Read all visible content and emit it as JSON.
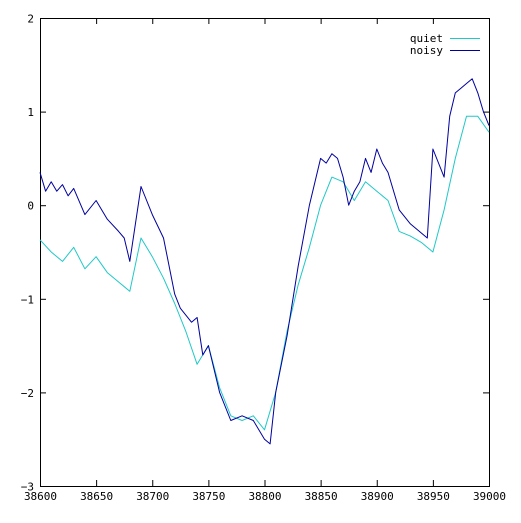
{
  "chart_data": {
    "type": "line",
    "title": "",
    "xlabel": "",
    "ylabel": "",
    "xlim": [
      38600,
      39000
    ],
    "ylim": [
      -3,
      2
    ],
    "grid": false,
    "legend_position": "top-right",
    "x_ticks": [
      38600,
      38650,
      38700,
      38750,
      38800,
      38850,
      38900,
      38950,
      39000
    ],
    "y_ticks": [
      -3,
      -2,
      -1,
      0,
      1,
      2
    ],
    "series": [
      {
        "name": "quiet",
        "color": "#20c8c8",
        "x": [
          38600,
          38610,
          38620,
          38630,
          38640,
          38650,
          38660,
          38670,
          38680,
          38690,
          38700,
          38710,
          38720,
          38730,
          38740,
          38750,
          38760,
          38770,
          38780,
          38790,
          38800,
          38810,
          38820,
          38830,
          38840,
          38850,
          38860,
          38870,
          38880,
          38890,
          38900,
          38910,
          38920,
          38930,
          38940,
          38950,
          38960,
          38970,
          38980,
          38990,
          39000
        ],
        "y": [
          -0.37,
          -0.5,
          -0.6,
          -0.45,
          -0.68,
          -0.55,
          -0.72,
          -0.82,
          -0.92,
          -0.35,
          -0.55,
          -0.78,
          -1.05,
          -1.35,
          -1.7,
          -1.5,
          -1.95,
          -2.25,
          -2.3,
          -2.25,
          -2.4,
          -2.0,
          -1.35,
          -0.85,
          -0.45,
          0.0,
          0.3,
          0.25,
          0.05,
          0.25,
          0.15,
          0.05,
          -0.28,
          -0.33,
          -0.4,
          -0.5,
          -0.05,
          0.5,
          0.95,
          0.95,
          0.78
        ]
      },
      {
        "name": "noisy",
        "color": "#0000a0",
        "x": [
          38600,
          38605,
          38610,
          38615,
          38620,
          38625,
          38630,
          38640,
          38650,
          38660,
          38670,
          38675,
          38680,
          38690,
          38700,
          38710,
          38720,
          38725,
          38735,
          38740,
          38745,
          38750,
          38760,
          38770,
          38780,
          38790,
          38800,
          38805,
          38810,
          38820,
          38830,
          38840,
          38850,
          38855,
          38860,
          38865,
          38870,
          38875,
          38880,
          38885,
          38890,
          38895,
          38900,
          38905,
          38910,
          38920,
          38930,
          38940,
          38945,
          38950,
          38960,
          38965,
          38970,
          38975,
          38980,
          38985,
          38990,
          38995,
          39000
        ],
        "y": [
          0.35,
          0.15,
          0.25,
          0.15,
          0.22,
          0.1,
          0.18,
          -0.1,
          0.05,
          -0.15,
          -0.28,
          -0.35,
          -0.6,
          0.2,
          -0.1,
          -0.35,
          -0.95,
          -1.1,
          -1.25,
          -1.2,
          -1.6,
          -1.5,
          -2.0,
          -2.3,
          -2.25,
          -2.3,
          -2.5,
          -2.55,
          -2.0,
          -1.4,
          -0.65,
          0.0,
          0.5,
          0.45,
          0.55,
          0.5,
          0.3,
          0.0,
          0.15,
          0.25,
          0.5,
          0.35,
          0.6,
          0.45,
          0.35,
          -0.05,
          -0.2,
          -0.3,
          -0.35,
          0.6,
          0.3,
          0.95,
          1.2,
          1.25,
          1.3,
          1.35,
          1.2,
          1.0,
          0.85
        ]
      }
    ]
  }
}
